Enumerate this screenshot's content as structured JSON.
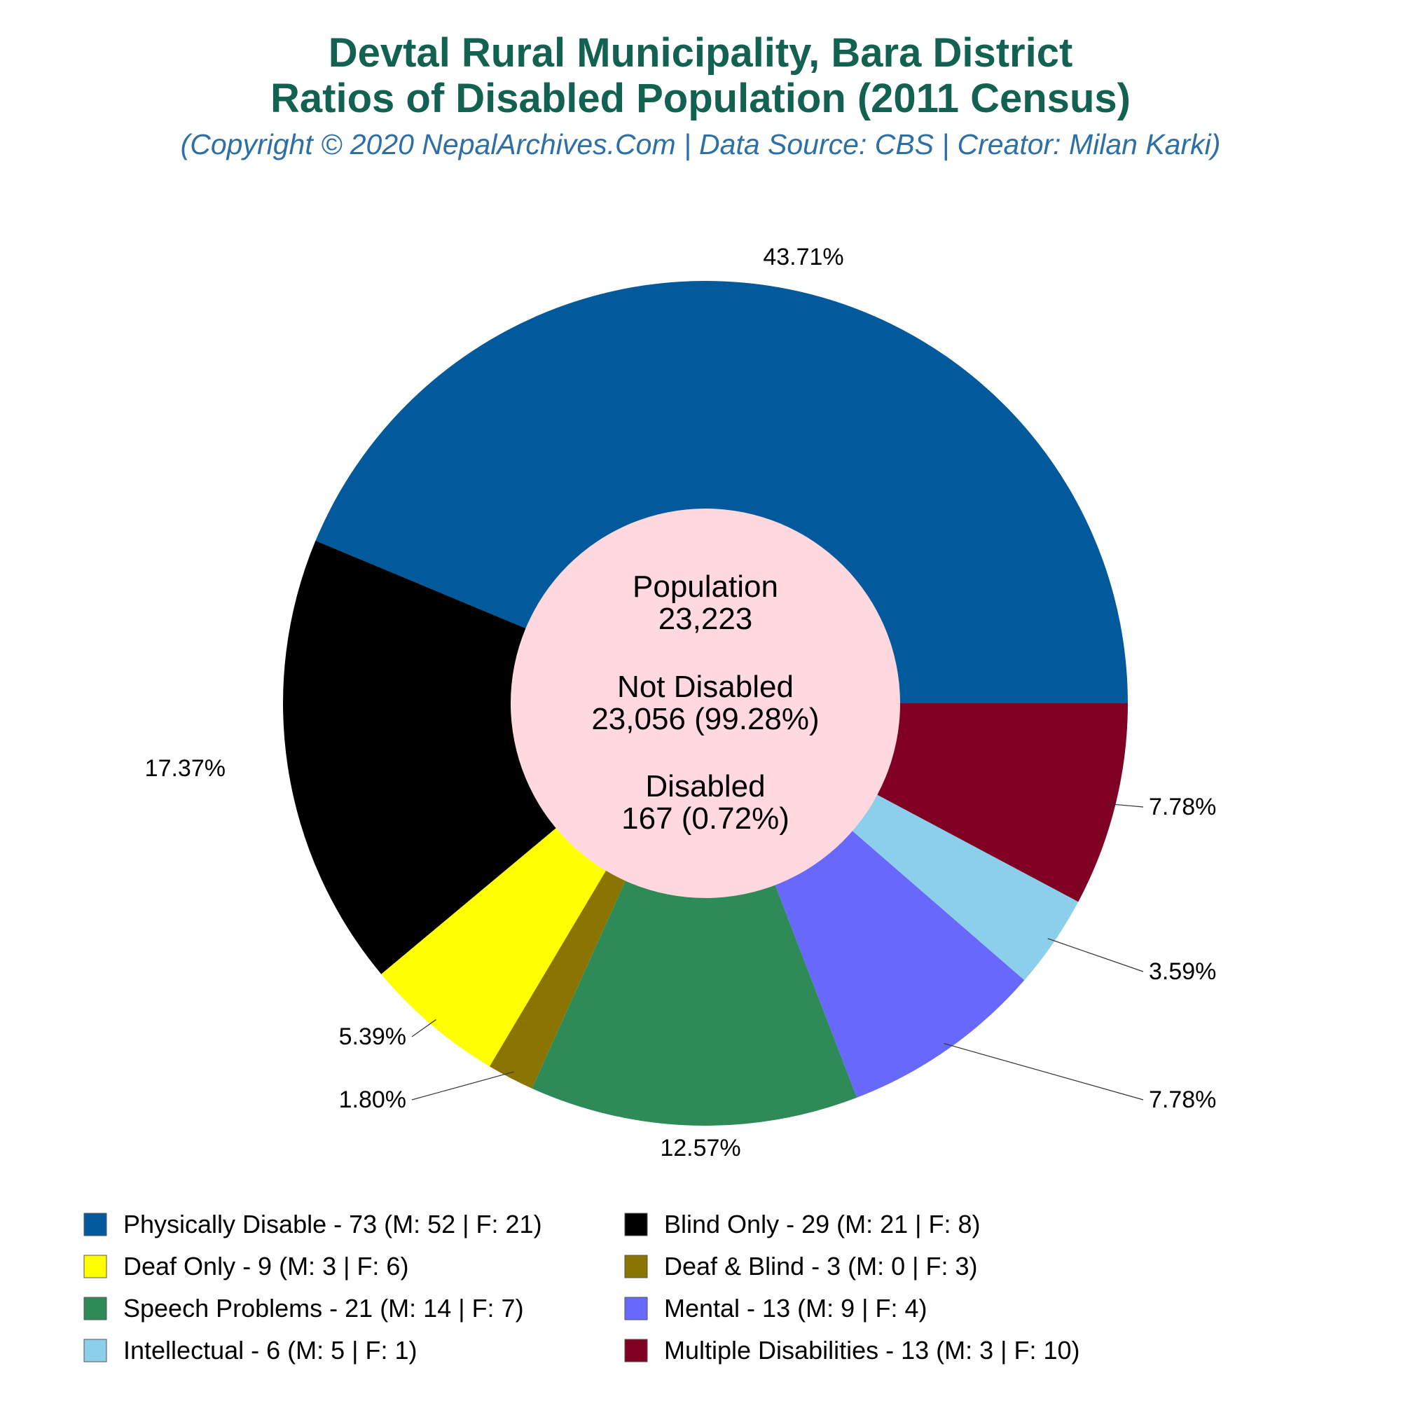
{
  "chart_data": {
    "type": "pie",
    "title": "Devtal Rural Municipality, Bara District",
    "title2": "Ratios of Disabled Population (2011 Census)",
    "subtitle": "(Copyright © 2020 NepalArchives.Com | Data Source: CBS | Creator: Milan Karki)",
    "center": {
      "population_label": "Population",
      "population_value": "23,223",
      "not_disabled_label": "Not Disabled",
      "not_disabled_value": "23,056 (99.28%)",
      "disabled_label": "Disabled",
      "disabled_value": "167 (0.72%)"
    },
    "slices": [
      {
        "name": "Physically Disable",
        "value": 73,
        "male": 52,
        "female": 21,
        "percent_label": "43.71%",
        "color": "#02599c",
        "legend": "Physically Disable - 73 (M: 52 | F: 21)"
      },
      {
        "name": "Blind Only",
        "value": 29,
        "male": 21,
        "female": 8,
        "percent_label": "17.37%",
        "color": "#000000",
        "legend": "Blind Only - 29 (M: 21 | F: 8)"
      },
      {
        "name": "Deaf Only",
        "value": 9,
        "male": 3,
        "female": 6,
        "percent_label": "5.39%",
        "color": "#ffff00",
        "legend": "Deaf Only - 9 (M: 3 | F: 6)"
      },
      {
        "name": "Deaf & Blind",
        "value": 3,
        "male": 0,
        "female": 3,
        "percent_label": "1.80%",
        "color": "#8b7500",
        "legend": "Deaf & Blind - 3 (M: 0 | F: 3)"
      },
      {
        "name": "Speech Problems",
        "value": 21,
        "male": 14,
        "female": 7,
        "percent_label": "12.57%",
        "color": "#2e8b57",
        "legend": "Speech Problems - 21 (M: 14 | F: 7)"
      },
      {
        "name": "Mental",
        "value": 13,
        "male": 9,
        "female": 4,
        "percent_label": "7.78%",
        "color": "#6868fc",
        "legend": "Mental - 13 (M: 9 | F: 4)"
      },
      {
        "name": "Intellectual",
        "value": 6,
        "male": 5,
        "female": 1,
        "percent_label": "3.59%",
        "color": "#8ccfeb",
        "legend": "Intellectual - 6 (M: 5 | F: 1)"
      },
      {
        "name": "Multiple Disabilities",
        "value": 13,
        "male": 3,
        "female": 10,
        "percent_label": "7.78%",
        "color": "#7f0022",
        "legend": "Multiple Disabilities - 13 (M: 3 | F: 10)"
      }
    ],
    "center_color": "#ffd9df",
    "legend_placement": "bottom"
  }
}
